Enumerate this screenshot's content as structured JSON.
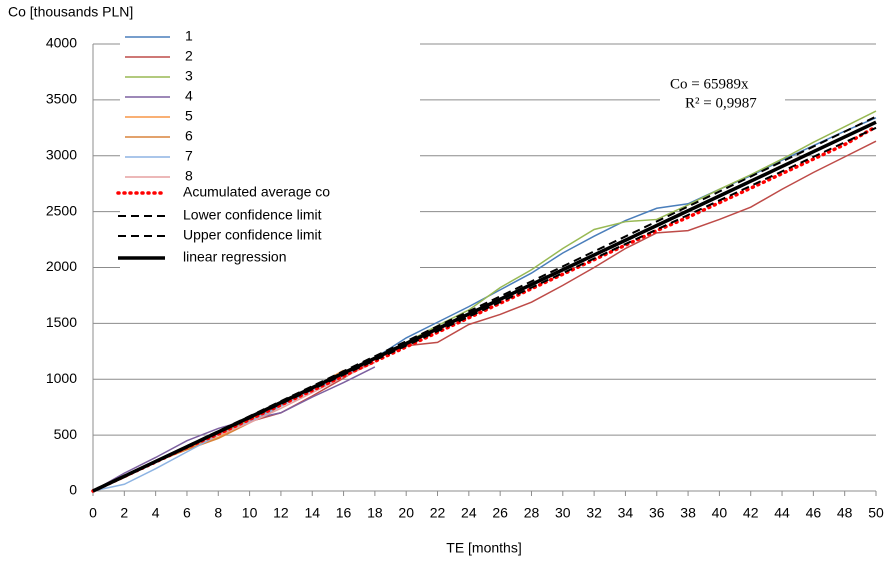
{
  "chart_data": {
    "type": "line",
    "y_label": "Co  [thousands PLN]",
    "x_label": "TE [months]",
    "annotations": [
      "Co   = 65989x",
      "R² = 0,9987"
    ],
    "xlim": [
      0,
      50
    ],
    "ylim": [
      0,
      4000
    ],
    "xticks": [
      0,
      2,
      4,
      6,
      8,
      10,
      12,
      14,
      16,
      18,
      20,
      22,
      24,
      26,
      28,
      30,
      32,
      34,
      36,
      38,
      40,
      42,
      44,
      46,
      48,
      50
    ],
    "yticks": [
      0,
      500,
      1000,
      1500,
      2000,
      2500,
      3000,
      3500,
      4000
    ],
    "grid": true,
    "legend": "upper left",
    "x": [
      0,
      2,
      4,
      6,
      8,
      10,
      12,
      14,
      16,
      18,
      20,
      22,
      24,
      26,
      28,
      30,
      32,
      34,
      36,
      38,
      40,
      42,
      44,
      46,
      48,
      50
    ],
    "series": [
      {
        "name": "1",
        "color": "#4a7ebb",
        "style": "solid",
        "values": [
          0,
          130,
          260,
          390,
          510,
          640,
          770,
          900,
          1040,
          1190,
          1370,
          1510,
          1650,
          1800,
          1950,
          2130,
          2280,
          2420,
          2530,
          2570,
          2700,
          2820,
          2960,
          3090,
          3220,
          3340
        ]
      },
      {
        "name": "2",
        "color": "#be4b48",
        "style": "solid",
        "values": [
          0,
          140,
          270,
          400,
          520,
          620,
          700,
          850,
          1010,
          1180,
          1300,
          1330,
          1490,
          1580,
          1690,
          1840,
          2000,
          2170,
          2310,
          2330,
          2430,
          2540,
          2700,
          2850,
          2990,
          3130
        ]
      },
      {
        "name": "3",
        "color": "#98b954",
        "style": "solid",
        "values": [
          0,
          130,
          260,
          390,
          500,
          640,
          780,
          910,
          1040,
          1180,
          1330,
          1480,
          1620,
          1820,
          1980,
          2170,
          2340,
          2410,
          2430,
          2560,
          2700,
          2830,
          2970,
          3120,
          3260,
          3400
        ]
      },
      {
        "name": "4",
        "color": "#7d60a0",
        "style": "solid",
        "values": [
          0,
          160,
          300,
          450,
          560,
          640,
          700,
          840,
          970,
          1110,
          null,
          null,
          null,
          null,
          null,
          null,
          null,
          null,
          null,
          null,
          null,
          null,
          null,
          null,
          null,
          null
        ]
      },
      {
        "name": "5",
        "color": "#f79646",
        "style": "solid",
        "values": [
          0,
          130,
          270,
          380,
          480,
          630,
          790,
          920,
          1080,
          null,
          null,
          null,
          null,
          null,
          null,
          null,
          null,
          null,
          null,
          null,
          null,
          null,
          null,
          null,
          null,
          null
        ]
      },
      {
        "name": "6",
        "color": "#d9843b",
        "style": "solid",
        "values": [
          0,
          120,
          260,
          370,
          470,
          610,
          760,
          900,
          1060,
          null,
          null,
          null,
          null,
          null,
          null,
          null,
          null,
          null,
          null,
          null,
          null,
          null,
          null,
          null,
          null,
          null
        ]
      },
      {
        "name": "7",
        "color": "#8eb4e3",
        "style": "solid",
        "values": [
          0,
          60,
          200,
          350,
          500,
          620,
          760,
          900,
          1030,
          1180,
          null,
          null,
          null,
          null,
          null,
          null,
          null,
          null,
          null,
          null,
          null,
          null,
          null,
          null,
          null,
          null
        ]
      },
      {
        "name": "8",
        "color": "#e6a0a0",
        "style": "solid",
        "values": [
          0,
          130,
          260,
          390,
          500,
          610,
          740,
          880,
          1020,
          1150,
          null,
          null,
          null,
          null,
          null,
          null,
          null,
          null,
          null,
          null,
          null,
          null,
          null,
          null,
          null,
          null
        ]
      },
      {
        "name": "Acumulated average co",
        "color": "#ff0000",
        "style": "dotted",
        "values": [
          0,
          130,
          260,
          390,
          510,
          640,
          770,
          900,
          1030,
          1160,
          1290,
          1420,
          1550,
          1680,
          1810,
          1940,
          2070,
          2200,
          2330,
          2450,
          2580,
          2710,
          2840,
          2970,
          3100,
          3260
        ]
      },
      {
        "name": "Lower confidence limit",
        "color": "#000000",
        "style": "dashed",
        "values": [
          0,
          130,
          260,
          390,
          520,
          650,
          780,
          910,
          1040,
          1170,
          1300,
          1430,
          1560,
          1690,
          1820,
          1950,
          2080,
          2210,
          2340,
          2470,
          2600,
          2730,
          2860,
          2990,
          3120,
          3250
        ]
      },
      {
        "name": "Upper confidence limit",
        "color": "#000000",
        "style": "dashed",
        "values": [
          0,
          134,
          268,
          402,
          536,
          670,
          804,
          938,
          1072,
          1206,
          1340,
          1474,
          1608,
          1742,
          1876,
          2010,
          2144,
          2278,
          2412,
          2546,
          2680,
          2814,
          2948,
          3082,
          3216,
          3350
        ]
      },
      {
        "name": "linear regression",
        "color": "#000000",
        "style": "bold",
        "values": [
          0,
          132,
          264,
          396,
          528,
          660,
          792,
          924,
          1056,
          1188,
          1320,
          1452,
          1584,
          1716,
          1848,
          1980,
          2112,
          2244,
          2376,
          2508,
          2640,
          2772,
          2904,
          3036,
          3168,
          3300
        ]
      }
    ]
  }
}
